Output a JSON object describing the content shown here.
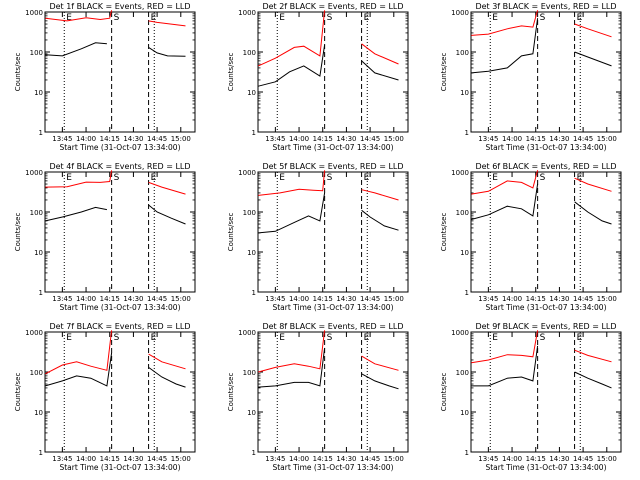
{
  "chart_data": [
    {
      "type": "line",
      "title": "Det 1f BLACK = Events, RED = LLD",
      "xlabel": "Start Time (31-Oct-07 13:34:00)",
      "ylabel": "Counts/sec",
      "yscale": "log",
      "ylim": [
        1,
        1000
      ],
      "yticks": [
        "1",
        "10",
        "100",
        "1000"
      ],
      "xticks": [
        "13:45",
        "14:00",
        "14:15",
        "14:30",
        "14:45",
        "15:00"
      ],
      "xlim": [
        "13:34",
        "15:09"
      ],
      "markers": [
        "E",
        "S",
        "E"
      ],
      "series": [
        {
          "name": "Events",
          "color": "#000000",
          "values": [
            [
              13.57,
              85
            ],
            [
              13.75,
              80
            ],
            [
              13.95,
              120
            ],
            [
              14.1,
              170
            ],
            [
              14.22,
              160
            ],
            [
              14.28,
              330
            ],
            [
              14.66,
              130
            ],
            [
              14.75,
              95
            ],
            [
              14.86,
              80
            ],
            [
              15.05,
              78
            ]
          ]
        },
        {
          "name": "LLD",
          "color": "#ff0000",
          "values": [
            [
              13.57,
              700
            ],
            [
              13.8,
              600
            ],
            [
              14.0,
              720
            ],
            [
              14.15,
              650
            ],
            [
              14.25,
              700
            ],
            [
              14.27,
              1100
            ],
            [
              14.5,
              1000
            ],
            [
              14.66,
              600
            ],
            [
              14.75,
              550
            ],
            [
              15.05,
              450
            ]
          ]
        }
      ]
    },
    {
      "type": "line",
      "title": "Det 2f BLACK = Events, RED = LLD",
      "xlabel": "Start Time (31-Oct-07 13:34:00)",
      "ylabel": "Counts/sec",
      "yscale": "log",
      "ylim": [
        1,
        1000
      ],
      "yticks": [
        "1",
        "10",
        "100",
        "1000"
      ],
      "xticks": [
        "13:45",
        "14:00",
        "14:15",
        "14:30",
        "14:45",
        "15:00"
      ],
      "xlim": [
        "13:34",
        "15:09"
      ],
      "markers": [
        "E",
        "S",
        "E"
      ],
      "series": [
        {
          "name": "Events",
          "color": "#000000",
          "values": [
            [
              13.57,
              14
            ],
            [
              13.75,
              18
            ],
            [
              13.9,
              32
            ],
            [
              14.05,
              45
            ],
            [
              14.22,
              25
            ],
            [
              14.27,
              150
            ],
            [
              14.5,
              100
            ],
            [
              14.66,
              60
            ],
            [
              14.8,
              30
            ],
            [
              15.05,
              20
            ]
          ]
        },
        {
          "name": "LLD",
          "color": "#ff0000",
          "values": [
            [
              13.57,
              45
            ],
            [
              13.75,
              70
            ],
            [
              13.95,
              130
            ],
            [
              14.05,
              140
            ],
            [
              14.22,
              80
            ],
            [
              14.27,
              1100
            ],
            [
              14.5,
              600
            ],
            [
              14.66,
              160
            ],
            [
              14.8,
              90
            ],
            [
              15.05,
              50
            ]
          ]
        }
      ]
    },
    {
      "type": "line",
      "title": "Det 3f BLACK = Events, RED = LLD",
      "xlabel": "Start Time (31-Oct-07 13:34:00)",
      "ylabel": "Counts/sec",
      "yscale": "log",
      "ylim": [
        1,
        1000
      ],
      "yticks": [
        "1",
        "10",
        "100",
        "1000"
      ],
      "xticks": [
        "13:45",
        "14:00",
        "14:15",
        "14:30",
        "14:45",
        "15:00"
      ],
      "xlim": [
        "13:34",
        "15:09"
      ],
      "markers": [
        "E",
        "S",
        "E"
      ],
      "series": [
        {
          "name": "Events",
          "color": "#000000",
          "values": [
            [
              13.57,
              30
            ],
            [
              13.75,
              33
            ],
            [
              13.95,
              40
            ],
            [
              14.1,
              80
            ],
            [
              14.22,
              90
            ],
            [
              14.27,
              700
            ],
            [
              14.5,
              300
            ],
            [
              14.66,
              100
            ],
            [
              14.8,
              75
            ],
            [
              15.05,
              45
            ]
          ]
        },
        {
          "name": "LLD",
          "color": "#ff0000",
          "values": [
            [
              13.57,
              260
            ],
            [
              13.75,
              280
            ],
            [
              13.95,
              380
            ],
            [
              14.1,
              450
            ],
            [
              14.22,
              420
            ],
            [
              14.27,
              1100
            ],
            [
              14.5,
              800
            ],
            [
              14.66,
              500
            ],
            [
              14.8,
              380
            ],
            [
              15.05,
              240
            ]
          ]
        }
      ]
    },
    {
      "type": "line",
      "title": "Det 4f BLACK = Events, RED = LLD",
      "xlabel": "Start Time (31-Oct-07 13:34:00)",
      "ylabel": "Counts/sec",
      "yscale": "log",
      "ylim": [
        1,
        1000
      ],
      "yticks": [
        "1",
        "10",
        "100",
        "1000"
      ],
      "xticks": [
        "13:45",
        "14:00",
        "14:15",
        "14:30",
        "14:45",
        "15:00"
      ],
      "xlim": [
        "13:34",
        "15:09"
      ],
      "markers": [
        "E",
        "S",
        "E"
      ],
      "series": [
        {
          "name": "Events",
          "color": "#000000",
          "values": [
            [
              13.57,
              60
            ],
            [
              13.75,
              75
            ],
            [
              13.95,
              100
            ],
            [
              14.1,
              130
            ],
            [
              14.22,
              115
            ],
            [
              14.28,
              260
            ],
            [
              14.66,
              150
            ],
            [
              14.75,
              100
            ],
            [
              14.9,
              70
            ],
            [
              15.05,
              50
            ]
          ]
        },
        {
          "name": "LLD",
          "color": "#ff0000",
          "values": [
            [
              13.57,
              420
            ],
            [
              13.8,
              430
            ],
            [
              14.0,
              560
            ],
            [
              14.15,
              550
            ],
            [
              14.25,
              580
            ],
            [
              14.27,
              1100
            ],
            [
              14.5,
              900
            ],
            [
              14.66,
              550
            ],
            [
              14.8,
              420
            ],
            [
              15.05,
              280
            ]
          ]
        }
      ]
    },
    {
      "type": "line",
      "title": "Det 5f BLACK = Events, RED = LLD",
      "xlabel": "Start Time (31-Oct-07 13:34:00)",
      "ylabel": "Counts/sec",
      "yscale": "log",
      "ylim": [
        1,
        1000
      ],
      "yticks": [
        "1",
        "10",
        "100",
        "1000"
      ],
      "xticks": [
        "13:45",
        "14:00",
        "14:15",
        "14:30",
        "14:45",
        "15:00"
      ],
      "xlim": [
        "13:34",
        "15:09"
      ],
      "markers": [
        "E",
        "S",
        "E"
      ],
      "series": [
        {
          "name": "Events",
          "color": "#000000",
          "values": [
            [
              13.57,
              30
            ],
            [
              13.75,
              33
            ],
            [
              13.95,
              55
            ],
            [
              14.1,
              80
            ],
            [
              14.22,
              60
            ],
            [
              14.27,
              300
            ],
            [
              14.66,
              110
            ],
            [
              14.75,
              75
            ],
            [
              14.9,
              45
            ],
            [
              15.05,
              35
            ]
          ]
        },
        {
          "name": "LLD",
          "color": "#ff0000",
          "values": [
            [
              13.57,
              260
            ],
            [
              13.8,
              300
            ],
            [
              14.0,
              370
            ],
            [
              14.15,
              350
            ],
            [
              14.25,
              340
            ],
            [
              14.27,
              1100
            ],
            [
              14.5,
              600
            ],
            [
              14.66,
              360
            ],
            [
              14.8,
              300
            ],
            [
              15.05,
              200
            ]
          ]
        }
      ]
    },
    {
      "type": "line",
      "title": "Det 6f BLACK = Events, RED = LLD",
      "xlabel": "Start Time (31-Oct-07 13:34:00)",
      "ylabel": "Counts/sec",
      "yscale": "log",
      "ylim": [
        1,
        1000
      ],
      "yticks": [
        "1",
        "10",
        "100",
        "1000"
      ],
      "xticks": [
        "13:45",
        "14:00",
        "14:15",
        "14:30",
        "14:45",
        "15:00"
      ],
      "xlim": [
        "13:34",
        "15:09"
      ],
      "markers": [
        "E",
        "S",
        "E"
      ],
      "series": [
        {
          "name": "Events",
          "color": "#000000",
          "values": [
            [
              13.57,
              65
            ],
            [
              13.75,
              85
            ],
            [
              13.95,
              140
            ],
            [
              14.1,
              120
            ],
            [
              14.22,
              80
            ],
            [
              14.27,
              500
            ],
            [
              14.66,
              180
            ],
            [
              14.8,
              100
            ],
            [
              14.95,
              60
            ],
            [
              15.05,
              50
            ]
          ]
        },
        {
          "name": "LLD",
          "color": "#ff0000",
          "values": [
            [
              13.57,
              280
            ],
            [
              13.75,
              330
            ],
            [
              13.95,
              600
            ],
            [
              14.1,
              550
            ],
            [
              14.22,
              400
            ],
            [
              14.27,
              1100
            ],
            [
              14.5,
              900
            ],
            [
              14.66,
              700
            ],
            [
              14.8,
              500
            ],
            [
              15.05,
              330
            ]
          ]
        }
      ]
    },
    {
      "type": "line",
      "title": "Det 7f BLACK = Events, RED = LLD",
      "xlabel": "Start Time (31-Oct-07 13:34:00)",
      "ylabel": "Counts/sec",
      "yscale": "log",
      "ylim": [
        1,
        1000
      ],
      "yticks": [
        "1",
        "10",
        "100",
        "1000"
      ],
      "xticks": [
        "13:45",
        "14:00",
        "14:15",
        "14:30",
        "14:45",
        "15:00"
      ],
      "xlim": [
        "13:34",
        "15:09"
      ],
      "markers": [
        "E",
        "S",
        "E"
      ],
      "series": [
        {
          "name": "Events",
          "color": "#000000",
          "values": [
            [
              13.57,
              45
            ],
            [
              13.75,
              60
            ],
            [
              13.9,
              80
            ],
            [
              14.05,
              70
            ],
            [
              14.22,
              45
            ],
            [
              14.27,
              300
            ],
            [
              14.66,
              130
            ],
            [
              14.8,
              75
            ],
            [
              14.95,
              50
            ],
            [
              15.05,
              42
            ]
          ]
        },
        {
          "name": "LLD",
          "color": "#ff0000",
          "values": [
            [
              13.57,
              90
            ],
            [
              13.75,
              150
            ],
            [
              13.9,
              180
            ],
            [
              14.05,
              140
            ],
            [
              14.22,
              110
            ],
            [
              14.27,
              1100
            ],
            [
              14.5,
              700
            ],
            [
              14.66,
              280
            ],
            [
              14.8,
              180
            ],
            [
              15.05,
              120
            ]
          ]
        }
      ]
    },
    {
      "type": "line",
      "title": "Det 8f BLACK = Events, RED = LLD",
      "xlabel": "Start Time (31-Oct-07 13:34:00)",
      "ylabel": "Counts/sec",
      "yscale": "log",
      "ylim": [
        1,
        1000
      ],
      "yticks": [
        "1",
        "10",
        "100",
        "1000"
      ],
      "xticks": [
        "13:45",
        "14:00",
        "14:15",
        "14:30",
        "14:45",
        "15:00"
      ],
      "xlim": [
        "13:34",
        "15:09"
      ],
      "markers": [
        "E",
        "S",
        "E"
      ],
      "series": [
        {
          "name": "Events",
          "color": "#000000",
          "values": [
            [
              13.57,
              42
            ],
            [
              13.75,
              45
            ],
            [
              13.95,
              55
            ],
            [
              14.1,
              55
            ],
            [
              14.22,
              45
            ],
            [
              14.27,
              400
            ],
            [
              14.66,
              90
            ],
            [
              14.8,
              60
            ],
            [
              14.95,
              45
            ],
            [
              15.05,
              38
            ]
          ]
        },
        {
          "name": "LLD",
          "color": "#ff0000",
          "values": [
            [
              13.57,
              100
            ],
            [
              13.75,
              130
            ],
            [
              13.95,
              160
            ],
            [
              14.1,
              140
            ],
            [
              14.22,
              120
            ],
            [
              14.27,
              1100
            ],
            [
              14.5,
              800
            ],
            [
              14.66,
              250
            ],
            [
              14.8,
              160
            ],
            [
              15.05,
              110
            ]
          ]
        }
      ]
    },
    {
      "type": "line",
      "title": "Det 9f BLACK = Events, RED = LLD",
      "xlabel": "Start Time (31-Oct-07 13:34:00)",
      "ylabel": "Counts/sec",
      "yscale": "log",
      "ylim": [
        1,
        1000
      ],
      "yticks": [
        "1",
        "10",
        "100",
        "1000"
      ],
      "xticks": [
        "13:45",
        "14:00",
        "14:15",
        "14:30",
        "14:45",
        "15:00"
      ],
      "xlim": [
        "13:34",
        "15:09"
      ],
      "markers": [
        "E",
        "S",
        "E"
      ],
      "series": [
        {
          "name": "Events",
          "color": "#000000",
          "values": [
            [
              13.57,
              45
            ],
            [
              13.75,
              45
            ],
            [
              13.95,
              70
            ],
            [
              14.1,
              75
            ],
            [
              14.22,
              60
            ],
            [
              14.27,
              450
            ],
            [
              14.66,
              100
            ],
            [
              14.8,
              70
            ],
            [
              14.95,
              50
            ],
            [
              15.05,
              40
            ]
          ]
        },
        {
          "name": "LLD",
          "color": "#ff0000",
          "values": [
            [
              13.57,
              170
            ],
            [
              13.75,
              200
            ],
            [
              13.95,
              270
            ],
            [
              14.1,
              260
            ],
            [
              14.22,
              240
            ],
            [
              14.27,
              1100
            ],
            [
              14.5,
              700
            ],
            [
              14.66,
              350
            ],
            [
              14.8,
              260
            ],
            [
              15.05,
              180
            ]
          ]
        }
      ]
    }
  ]
}
